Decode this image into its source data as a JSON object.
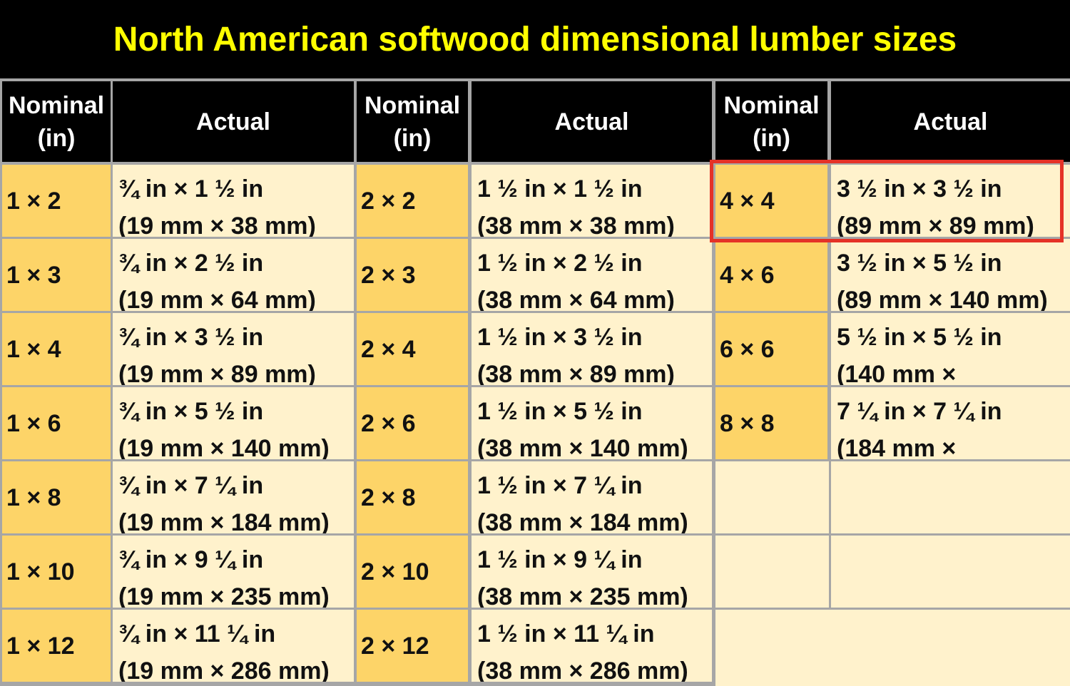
{
  "title": "North American softwood dimensional lumber sizes",
  "header": [
    {
      "lines": [
        "Nominal",
        "(in)"
      ]
    },
    {
      "lines": [
        "Actual"
      ]
    },
    {
      "lines": [
        "Nominal",
        "(in)"
      ]
    },
    {
      "lines": [
        "Actual"
      ]
    },
    {
      "lines": [
        "Nominal",
        "(in)"
      ]
    },
    {
      "lines": [
        "Actual"
      ]
    }
  ],
  "rows": [
    [
      {
        "nominal": "1 × 2",
        "actual": [
          "¾ in × 1 ½ in",
          "(19 mm × 38 mm)"
        ]
      },
      {
        "nominal": "2 × 2",
        "actual": [
          "1 ½ in × 1 ½ in",
          "(38 mm × 38 mm)"
        ]
      },
      {
        "nominal": "4 × 4",
        "actual": [
          "3 ½ in × 3 ½ in",
          "(89 mm × 89 mm)"
        ]
      }
    ],
    [
      {
        "nominal": "1 × 3",
        "actual": [
          "¾ in × 2 ½ in",
          "(19 mm × 64 mm)"
        ]
      },
      {
        "nominal": "2 × 3",
        "actual": [
          "1 ½ in × 2 ½ in",
          "(38 mm × 64 mm)"
        ]
      },
      {
        "nominal": "4 × 6",
        "actual": [
          "3 ½ in × 5 ½ in",
          "(89 mm × 140 mm)"
        ]
      }
    ],
    [
      {
        "nominal": "1 × 4",
        "actual": [
          "¾ in × 3 ½ in",
          "(19 mm × 89 mm)"
        ]
      },
      {
        "nominal": "2 × 4",
        "actual": [
          "1 ½ in × 3 ½ in",
          "(38 mm × 89 mm)"
        ]
      },
      {
        "nominal": "6 × 6",
        "actual": [
          "5 ½ in × 5 ½ in",
          "(140 mm ×"
        ]
      }
    ],
    [
      {
        "nominal": "1 × 6",
        "actual": [
          "¾ in × 5 ½ in",
          "(19 mm × 140 mm)"
        ]
      },
      {
        "nominal": "2 × 6",
        "actual": [
          "1 ½ in × 5 ½ in",
          "(38 mm × 140 mm)"
        ]
      },
      {
        "nominal": "8 × 8",
        "actual": [
          "7 ¼ in × 7 ¼ in",
          "(184 mm ×"
        ]
      }
    ],
    [
      {
        "nominal": "1 × 8",
        "actual": [
          "¾ in × 7 ¼ in",
          "(19 mm × 184 mm)"
        ]
      },
      {
        "nominal": "2 × 8",
        "actual": [
          "1 ½ in × 7 ¼ in",
          "(38 mm × 184 mm)"
        ]
      }
    ],
    [
      {
        "nominal": "1 × 10",
        "actual": [
          "¾ in × 9 ¼ in",
          "(19 mm × 235 mm)"
        ]
      },
      {
        "nominal": "2 × 10",
        "actual": [
          "1 ½ in × 9 ¼ in",
          "(38 mm × 235 mm)"
        ]
      }
    ],
    [
      {
        "nominal": "1 × 12",
        "actual": [
          "¾ in × 11 ¼ in",
          "(19 mm × 286 mm)"
        ]
      },
      {
        "nominal": "2 × 12",
        "actual": [
          "1 ½ in × 11 ¼ in",
          "(38 mm × 286 mm)"
        ]
      }
    ]
  ]
}
